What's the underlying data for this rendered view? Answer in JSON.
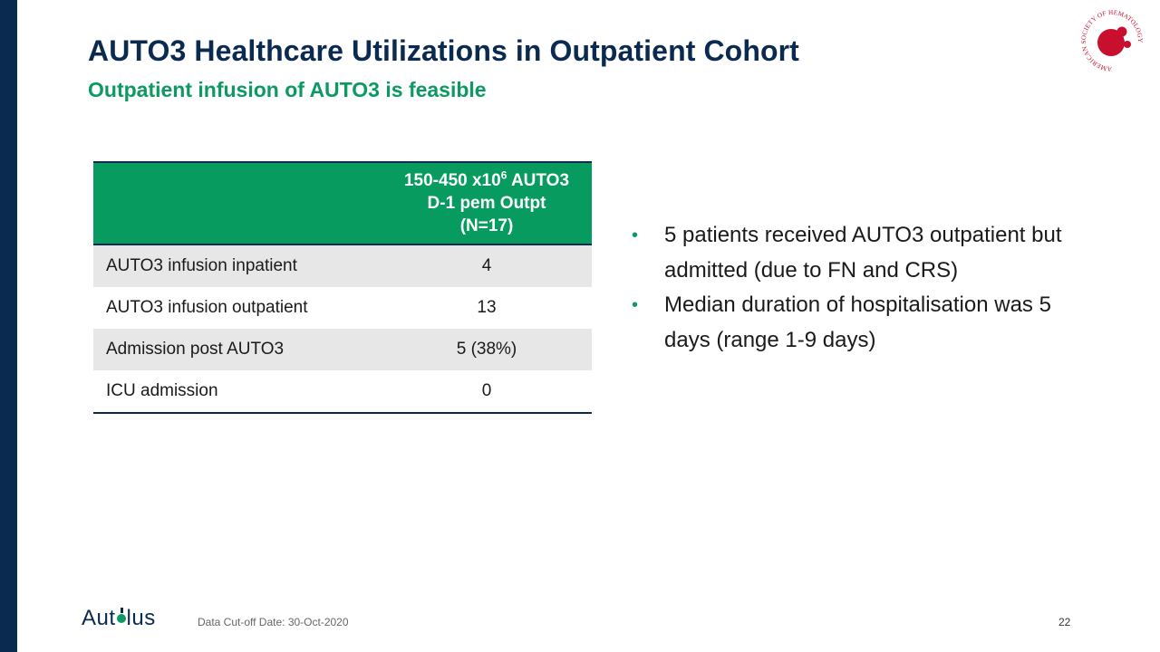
{
  "slide": {
    "title": "AUTO3 Healthcare Utilizations in Outpatient Cohort",
    "subtitle": "Outpatient infusion of AUTO3 is feasible"
  },
  "ash_logo": {
    "text": "AMERICAN SOCIETY OF HEMATOLOGY",
    "color": "#c8102e"
  },
  "table": {
    "header": {
      "line1_prefix": "150-450 x10",
      "line1_sup": "6",
      "line1_suffix": " AUTO3",
      "line2": "D-1 pem Outpt",
      "line3": "(N=17)"
    },
    "rows": [
      {
        "label": "AUTO3 infusion inpatient",
        "value": "4"
      },
      {
        "label": "AUTO3 infusion outpatient",
        "value": "13"
      },
      {
        "label": "Admission post AUTO3",
        "value": "5 (38%)"
      },
      {
        "label": "ICU admission",
        "value": "0"
      }
    ]
  },
  "bullets": [
    {
      "marker": "•",
      "text": "5 patients received AUTO3 outpatient but admitted (due to FN and CRS)"
    },
    {
      "marker": "•",
      "text": "Median duration of hospitalisation was 5 days (range 1-9 days)"
    }
  ],
  "footer": {
    "logo_before": "Aut",
    "logo_after": "lus",
    "date_text": "Data Cut-off Date: 30-Oct-2020",
    "page_number": "22"
  },
  "colors": {
    "navy": "#0a2a4f",
    "green": "#079b5f",
    "shade": "#e7e7e7"
  }
}
